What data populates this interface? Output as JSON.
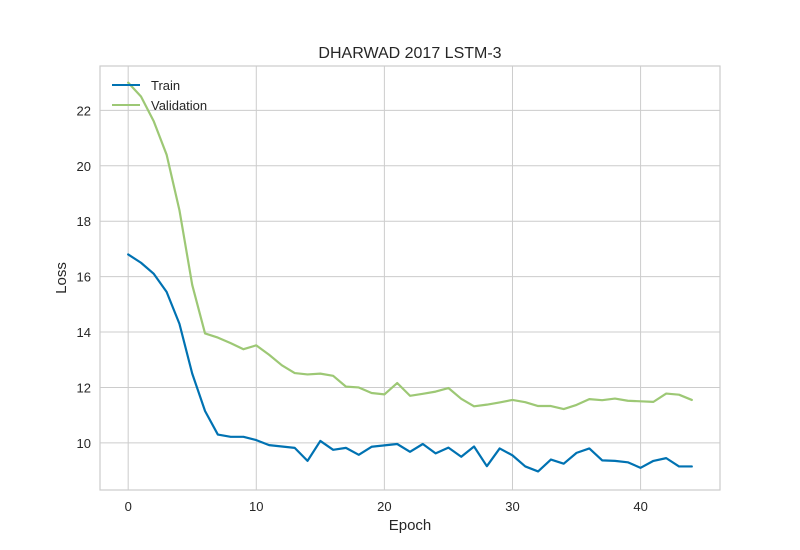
{
  "chart_data": {
    "type": "line",
    "title": "DHARWAD 2017 LSTM-3",
    "xlabel": "Epoch",
    "ylabel": "Loss",
    "xlim": [
      -2.2,
      46.2
    ],
    "ylim": [
      8.3,
      23.6
    ],
    "xticks": [
      0,
      10,
      20,
      30,
      40
    ],
    "yticks": [
      10,
      12,
      14,
      16,
      18,
      20,
      22
    ],
    "grid": true,
    "legend": "top-left",
    "x": [
      0,
      1,
      2,
      3,
      4,
      5,
      6,
      7,
      8,
      9,
      10,
      11,
      12,
      13,
      14,
      15,
      16,
      17,
      18,
      19,
      20,
      21,
      22,
      23,
      24,
      25,
      26,
      27,
      28,
      29,
      30,
      31,
      32,
      33,
      34,
      35,
      36,
      37,
      38,
      39,
      40,
      41,
      42,
      43,
      44
    ],
    "series": [
      {
        "name": "Train",
        "color": "#0072b2",
        "values": [
          16.8,
          16.5,
          16.1,
          15.45,
          14.3,
          12.5,
          11.15,
          10.3,
          10.22,
          10.22,
          10.1,
          9.92,
          9.87,
          9.82,
          9.35,
          10.07,
          9.75,
          9.82,
          9.57,
          9.86,
          9.91,
          9.96,
          9.68,
          9.96,
          9.62,
          9.83,
          9.5,
          9.87,
          9.16,
          9.8,
          9.55,
          9.15,
          8.97,
          9.4,
          9.25,
          9.64,
          9.8,
          9.37,
          9.35,
          9.3,
          9.1,
          9.35,
          9.45,
          9.15,
          9.15
        ]
      },
      {
        "name": "Validation",
        "color": "#9dc875",
        "values": [
          23.0,
          22.5,
          21.6,
          20.4,
          18.4,
          15.7,
          13.95,
          13.8,
          13.6,
          13.38,
          13.52,
          13.18,
          12.8,
          12.52,
          12.47,
          12.5,
          12.42,
          12.03,
          12.0,
          11.8,
          11.75,
          12.16,
          11.7,
          11.77,
          11.85,
          11.98,
          11.59,
          11.32,
          11.38,
          11.46,
          11.55,
          11.47,
          11.33,
          11.33,
          11.22,
          11.37,
          11.58,
          11.54,
          11.6,
          11.52,
          11.5,
          11.48,
          11.78,
          11.74,
          11.55
        ]
      }
    ]
  }
}
